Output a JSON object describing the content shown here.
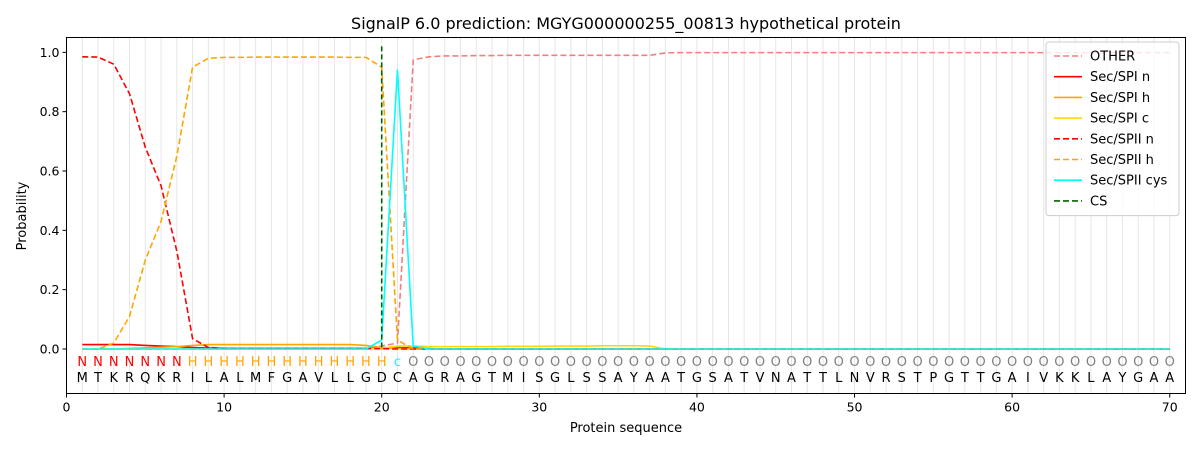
{
  "chart_data": {
    "type": "line",
    "title": "SignalP 6.0 prediction: MGYG000000255_00813 hypothetical protein",
    "xlabel": "Protein sequence",
    "ylabel": "Probability",
    "xlim": [
      0,
      71
    ],
    "ylim": [
      -0.15,
      1.05
    ],
    "xticks": [
      0,
      10,
      20,
      30,
      40,
      50,
      60,
      70
    ],
    "yticks": [
      0.0,
      0.2,
      0.4,
      0.6,
      0.8,
      1.0
    ],
    "xtick_labels": [
      "0",
      "10",
      "20",
      "30",
      "40",
      "50",
      "60",
      "70"
    ],
    "ytick_labels": [
      "0.0",
      "0.2",
      "0.4",
      "0.6",
      "0.8",
      "1.0"
    ],
    "grid": "vertical lines at each residue",
    "legend_position": "top-right",
    "sequence": [
      "M",
      "T",
      "K",
      "R",
      "Q",
      "K",
      "R",
      "I",
      "L",
      "A",
      "L",
      "M",
      "F",
      "G",
      "A",
      "V",
      "L",
      "L",
      "G",
      "D",
      "C",
      "A",
      "G",
      "R",
      "A",
      "G",
      "T",
      "M",
      "I",
      "S",
      "G",
      "L",
      "S",
      "S",
      "A",
      "Y",
      "A",
      "A",
      "T",
      "G",
      "S",
      "A",
      "T",
      "V",
      "N",
      "A",
      "T",
      "T",
      "L",
      "N",
      "V",
      "R",
      "S",
      "T",
      "P",
      "G",
      "T",
      "T",
      "G",
      "A",
      "I",
      "V",
      "K",
      "K",
      "L",
      "A",
      "Y",
      "G",
      "A",
      "A"
    ],
    "region_labels": [
      "N",
      "N",
      "N",
      "N",
      "N",
      "N",
      "N",
      "H",
      "H",
      "H",
      "H",
      "H",
      "H",
      "H",
      "H",
      "H",
      "H",
      "H",
      "H",
      "H",
      "c",
      "O",
      "O",
      "O",
      "O",
      "O",
      "O",
      "O",
      "O",
      "O",
      "O",
      "O",
      "O",
      "O",
      "O",
      "O",
      "O",
      "O",
      "O",
      "O",
      "O",
      "O",
      "O",
      "O",
      "O",
      "O",
      "O",
      "O",
      "O",
      "O",
      "O",
      "O",
      "O",
      "O",
      "O",
      "O",
      "O",
      "O",
      "O",
      "O",
      "O",
      "O",
      "O",
      "O",
      "O",
      "O",
      "O",
      "O",
      "O",
      "O"
    ],
    "region_colors": {
      "N": "#ff0000",
      "H": "#ffa500",
      "c": "#00ffff",
      "O": "#808080"
    },
    "cleavage_site": 20,
    "series": [
      {
        "name": "OTHER",
        "color": "#f08080",
        "dash": "dashed",
        "values": [
          0.0,
          0.0,
          0.0,
          0.0,
          0.0,
          0.0,
          0.0,
          0.0,
          0.0,
          0.0,
          0.0,
          0.0,
          0.0,
          0.0,
          0.0,
          0.0,
          0.0,
          0.0,
          0.0,
          0.01,
          0.02,
          0.975,
          0.985,
          0.988,
          0.988,
          0.989,
          0.989,
          0.99,
          0.99,
          0.99,
          0.99,
          0.99,
          0.99,
          0.99,
          0.99,
          0.99,
          0.99,
          0.998,
          0.999,
          0.999,
          0.999,
          0.999,
          0.999,
          0.999,
          0.999,
          0.999,
          0.999,
          0.999,
          0.999,
          0.999,
          0.999,
          0.999,
          0.999,
          0.999,
          0.999,
          0.999,
          0.999,
          0.999,
          0.999,
          0.999,
          0.999,
          0.999,
          0.999,
          0.999,
          0.999,
          0.999,
          0.999,
          0.999,
          0.999,
          0.999
        ]
      },
      {
        "name": "Sec/SPI n",
        "color": "#ff0000",
        "dash": "solid",
        "values": [
          0.015,
          0.015,
          0.015,
          0.015,
          0.012,
          0.01,
          0.008,
          0.005,
          0.003,
          0.002,
          0.002,
          0.002,
          0.002,
          0.002,
          0.002,
          0.002,
          0.002,
          0.002,
          0.002,
          0.002,
          0.005,
          0.003,
          0.001,
          0.0,
          0.0,
          0.0,
          0.0,
          0.0,
          0.0,
          0.0,
          0.0,
          0.0,
          0.0,
          0.0,
          0.0,
          0.0,
          0.0,
          0.0,
          0.0,
          0.0,
          0.0,
          0.0,
          0.0,
          0.0,
          0.0,
          0.0,
          0.0,
          0.0,
          0.0,
          0.0,
          0.0,
          0.0,
          0.0,
          0.0,
          0.0,
          0.0,
          0.0,
          0.0,
          0.0,
          0.0,
          0.0,
          0.0,
          0.0,
          0.0,
          0.0,
          0.0,
          0.0,
          0.0,
          0.0,
          0.0
        ]
      },
      {
        "name": "Sec/SPI h",
        "color": "#ffa500",
        "dash": "solid",
        "values": [
          0.0,
          0.0,
          0.0,
          0.002,
          0.004,
          0.006,
          0.008,
          0.012,
          0.015,
          0.015,
          0.015,
          0.015,
          0.015,
          0.015,
          0.015,
          0.015,
          0.015,
          0.015,
          0.012,
          0.005,
          0.002,
          0.0,
          0.0,
          0.0,
          0.0,
          0.0,
          0.0,
          0.0,
          0.0,
          0.0,
          0.0,
          0.0,
          0.0,
          0.0,
          0.0,
          0.0,
          0.0,
          0.0,
          0.0,
          0.0,
          0.0,
          0.0,
          0.0,
          0.0,
          0.0,
          0.0,
          0.0,
          0.0,
          0.0,
          0.0,
          0.0,
          0.0,
          0.0,
          0.0,
          0.0,
          0.0,
          0.0,
          0.0,
          0.0,
          0.0,
          0.0,
          0.0,
          0.0,
          0.0,
          0.0,
          0.0,
          0.0,
          0.0,
          0.0,
          0.0
        ]
      },
      {
        "name": "Sec/SPI c",
        "color": "#ffd700",
        "dash": "solid",
        "values": [
          0.0,
          0.0,
          0.0,
          0.0,
          0.0,
          0.0,
          0.0,
          0.0,
          0.0,
          0.0,
          0.0,
          0.0,
          0.0,
          0.0,
          0.0,
          0.0,
          0.0,
          0.0,
          0.0,
          0.003,
          0.01,
          0.01,
          0.008,
          0.008,
          0.008,
          0.008,
          0.008,
          0.009,
          0.009,
          0.009,
          0.01,
          0.01,
          0.01,
          0.011,
          0.011,
          0.011,
          0.01,
          0.0,
          0.0,
          0.0,
          0.0,
          0.0,
          0.0,
          0.0,
          0.0,
          0.0,
          0.0,
          0.0,
          0.0,
          0.0,
          0.0,
          0.0,
          0.0,
          0.0,
          0.0,
          0.0,
          0.0,
          0.0,
          0.0,
          0.0,
          0.0,
          0.0,
          0.0,
          0.0,
          0.0,
          0.0,
          0.0,
          0.0,
          0.0,
          0.0
        ]
      },
      {
        "name": "Sec/SPII n",
        "color": "#ff0000",
        "dash": "dashed",
        "values": [
          0.985,
          0.984,
          0.96,
          0.86,
          0.68,
          0.55,
          0.33,
          0.035,
          0.005,
          0.002,
          0.001,
          0.001,
          0.001,
          0.001,
          0.001,
          0.001,
          0.001,
          0.001,
          0.001,
          0.001,
          0.0,
          0.0,
          0.0,
          0.0,
          0.0,
          0.0,
          0.0,
          0.0,
          0.0,
          0.0,
          0.0,
          0.0,
          0.0,
          0.0,
          0.0,
          0.0,
          0.0,
          0.0,
          0.0,
          0.0,
          0.0,
          0.0,
          0.0,
          0.0,
          0.0,
          0.0,
          0.0,
          0.0,
          0.0,
          0.0,
          0.0,
          0.0,
          0.0,
          0.0,
          0.0,
          0.0,
          0.0,
          0.0,
          0.0,
          0.0,
          0.0,
          0.0,
          0.0,
          0.0,
          0.0,
          0.0,
          0.0,
          0.0,
          0.0,
          0.0
        ]
      },
      {
        "name": "Sec/SPII h",
        "color": "#ffa500",
        "dash": "dashed",
        "values": [
          0.0,
          0.0,
          0.02,
          0.11,
          0.3,
          0.43,
          0.65,
          0.95,
          0.98,
          0.983,
          0.983,
          0.984,
          0.984,
          0.984,
          0.984,
          0.984,
          0.984,
          0.983,
          0.983,
          0.95,
          0.03,
          0.0,
          0.0,
          0.0,
          0.0,
          0.0,
          0.0,
          0.0,
          0.0,
          0.0,
          0.0,
          0.0,
          0.0,
          0.0,
          0.0,
          0.0,
          0.0,
          0.0,
          0.0,
          0.0,
          0.0,
          0.0,
          0.0,
          0.0,
          0.0,
          0.0,
          0.0,
          0.0,
          0.0,
          0.0,
          0.0,
          0.0,
          0.0,
          0.0,
          0.0,
          0.0,
          0.0,
          0.0,
          0.0,
          0.0,
          0.0,
          0.0,
          0.0,
          0.0,
          0.0,
          0.0,
          0.0,
          0.0,
          0.0,
          0.0
        ]
      },
      {
        "name": "Sec/SPII cys",
        "color": "#00ffff",
        "dash": "solid",
        "values": [
          0.0,
          0.0,
          0.0,
          0.0,
          0.0,
          0.0,
          0.0,
          0.0,
          0.0,
          0.0,
          0.0,
          0.0,
          0.0,
          0.0,
          0.0,
          0.0,
          0.0,
          0.0,
          0.0,
          0.03,
          0.94,
          0.01,
          0.0,
          0.0,
          0.0,
          0.0,
          0.0,
          0.0,
          0.0,
          0.0,
          0.0,
          0.0,
          0.0,
          0.0,
          0.0,
          0.0,
          0.0,
          0.0,
          0.0,
          0.0,
          0.0,
          0.0,
          0.0,
          0.0,
          0.0,
          0.0,
          0.0,
          0.0,
          0.0,
          0.0,
          0.0,
          0.0,
          0.0,
          0.0,
          0.0,
          0.0,
          0.0,
          0.0,
          0.0,
          0.0,
          0.0,
          0.0,
          0.0,
          0.0,
          0.0,
          0.0,
          0.0,
          0.0,
          0.0,
          0.0
        ]
      }
    ],
    "legend": [
      {
        "name": "OTHER",
        "color": "#f08080",
        "dash": "dashed"
      },
      {
        "name": "Sec/SPI n",
        "color": "#ff0000",
        "dash": "solid"
      },
      {
        "name": "Sec/SPI h",
        "color": "#ffa500",
        "dash": "solid"
      },
      {
        "name": "Sec/SPI c",
        "color": "#ffd700",
        "dash": "solid"
      },
      {
        "name": "Sec/SPII n",
        "color": "#ff0000",
        "dash": "dashed"
      },
      {
        "name": "Sec/SPII h",
        "color": "#ffa500",
        "dash": "dashed"
      },
      {
        "name": "Sec/SPII cys",
        "color": "#00ffff",
        "dash": "solid"
      },
      {
        "name": "CS",
        "color": "#006400",
        "dash": "dashed"
      }
    ]
  }
}
